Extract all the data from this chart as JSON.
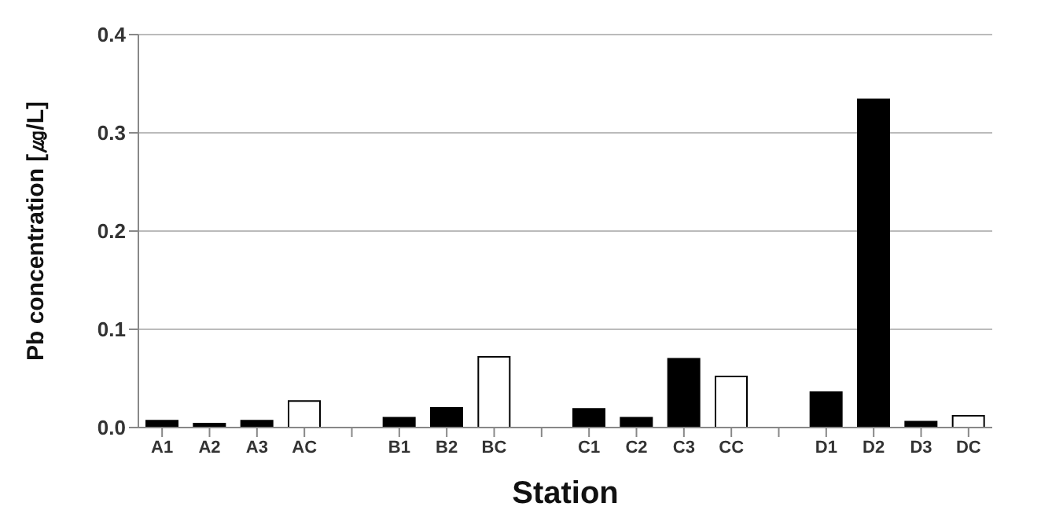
{
  "chart_data": {
    "type": "bar",
    "xlabel": "Station",
    "ylabel": "Pb concentration [㎍/L]",
    "categories": [
      "A1",
      "A2",
      "A3",
      "AC",
      null,
      "B1",
      "B2",
      "BC",
      null,
      "C1",
      "C2",
      "C3",
      "CC",
      null,
      "D1",
      "D2",
      "D3",
      "DC"
    ],
    "values": [
      0.007,
      0.004,
      0.007,
      0.027,
      null,
      0.01,
      0.02,
      0.072,
      null,
      0.019,
      0.01,
      0.07,
      0.052,
      null,
      0.036,
      0.334,
      0.006,
      0.012
    ],
    "colors": [
      "#000000",
      "#000000",
      "#000000",
      "#ffffff",
      null,
      "#000000",
      "#000000",
      "#ffffff",
      null,
      "#000000",
      "#000000",
      "#000000",
      "#ffffff",
      null,
      "#000000",
      "#000000",
      "#000000",
      "#ffffff"
    ],
    "ylim": [
      0,
      0.4
    ],
    "yticks": [
      {
        "value": 0,
        "label": "0.0"
      },
      {
        "value": 0.1,
        "label": "0.1"
      },
      {
        "value": 0.2,
        "label": "0.2"
      },
      {
        "value": 0.3,
        "label": "0.3"
      },
      {
        "value": 0.4,
        "label": "0.4"
      }
    ],
    "grid": "y"
  }
}
